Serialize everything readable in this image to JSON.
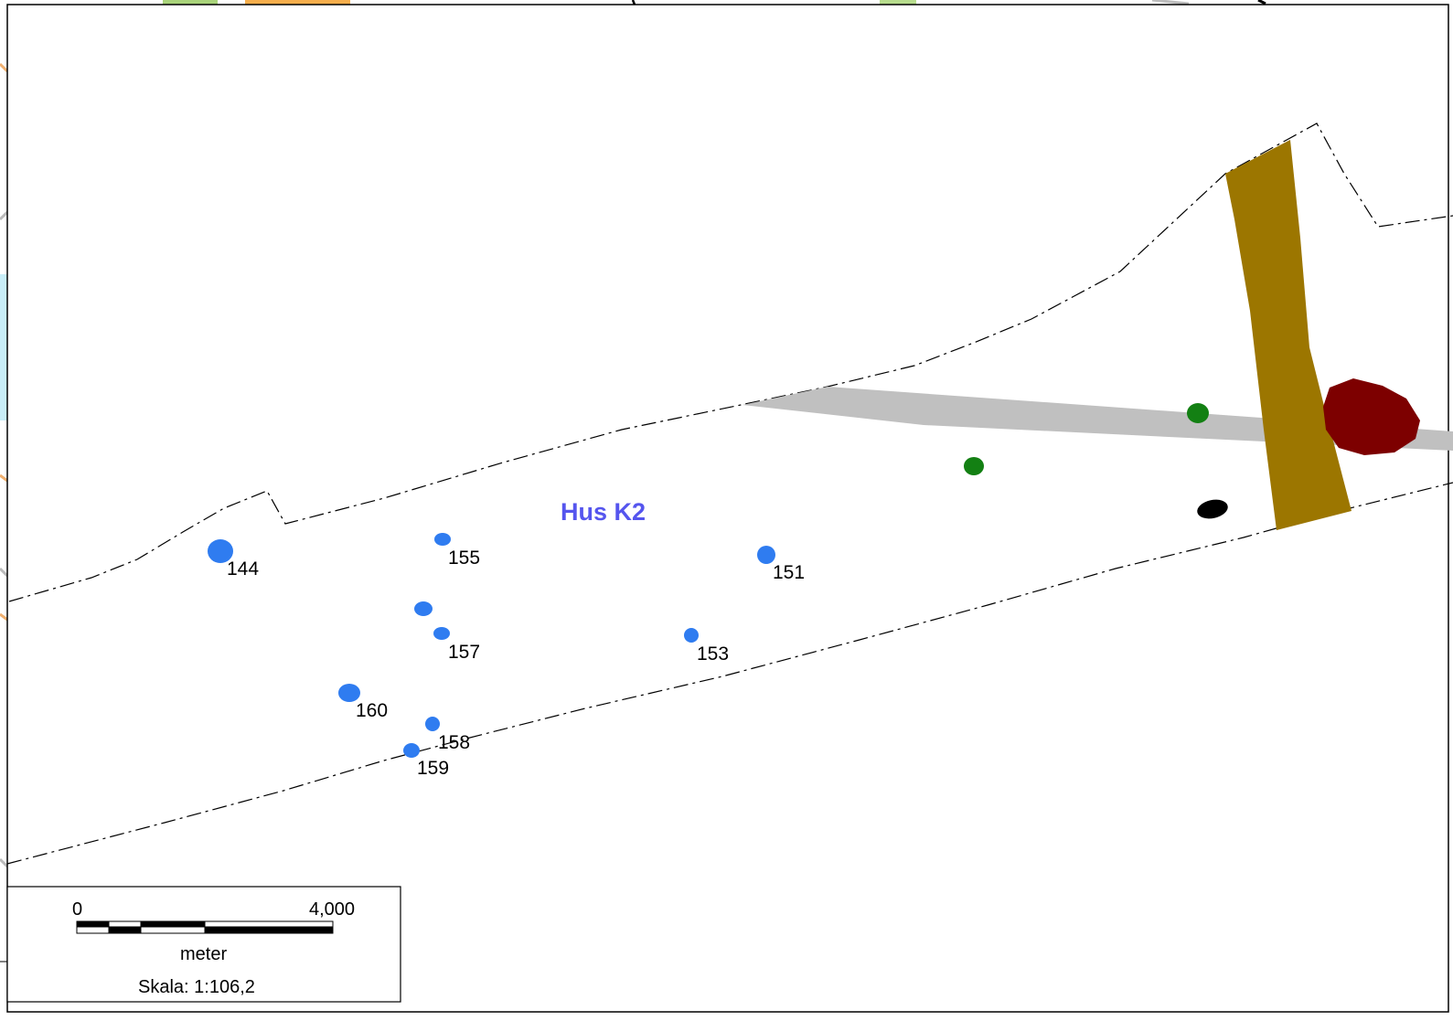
{
  "map": {
    "house_label": "Hus K2",
    "colors": {
      "posthole": "#2f7cf0",
      "house_label": "#5555ee",
      "gray_band": "#c0c0c0",
      "brown_band": "#9c7600",
      "dark_red_feature": "#7d0000",
      "green_feature": "#138013",
      "black_feature": "#000000",
      "boundary_line": "#000000"
    },
    "features": [
      {
        "id": "144",
        "label": "144"
      },
      {
        "id": "155",
        "label": "155"
      },
      {
        "id": "151",
        "label": "151"
      },
      {
        "id": "157",
        "label": "157"
      },
      {
        "id": "153",
        "label": "153"
      },
      {
        "id": "160",
        "label": "160"
      },
      {
        "id": "158",
        "label": "158"
      },
      {
        "id": "159",
        "label": "159"
      }
    ]
  },
  "scalebar": {
    "start_label": "0",
    "end_label": "4,000",
    "unit_label": "meter",
    "scale_text": "Skala: 1:106,2"
  }
}
